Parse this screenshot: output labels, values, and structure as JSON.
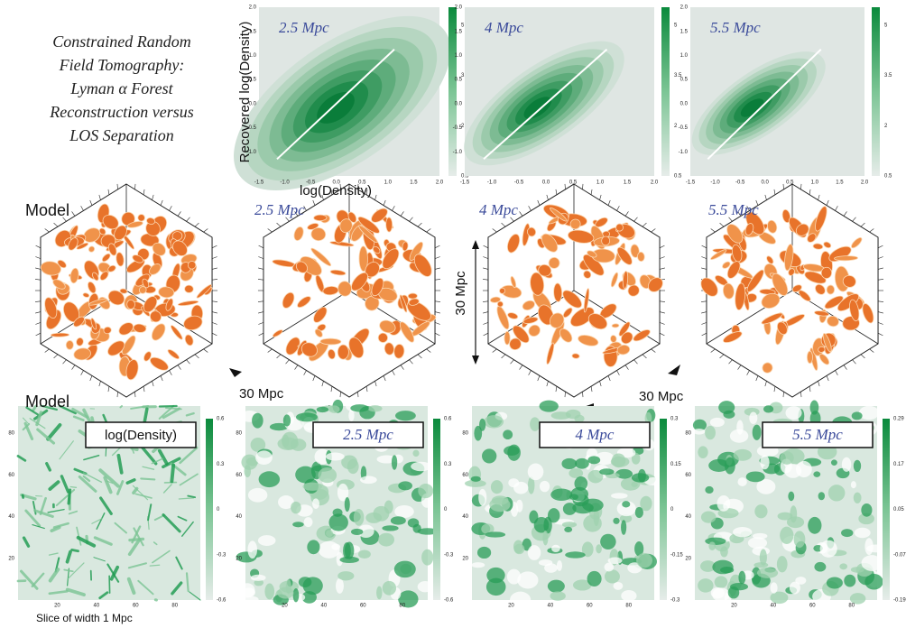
{
  "title": [
    "Constrained Random",
    "Field Tomography:",
    "Lyman α Forest",
    "Reconstruction versus",
    "LOS Separation"
  ],
  "density_comparison": {
    "y_label": "Recovered log(Density)",
    "x_label": "log(Density)",
    "tick_labels": [
      "-1.5",
      "-1.0",
      "-0.5",
      "0.0",
      "0.5",
      "1.0",
      "1.5",
      "2.0"
    ],
    "panels": [
      {
        "label": "2.5 Mpc",
        "colorbar_ticks": [
          "5",
          "3.5",
          "2",
          "0.5"
        ]
      },
      {
        "label": "4 Mpc",
        "colorbar_ticks": [
          "5",
          "3.5",
          "2",
          "0.5"
        ]
      },
      {
        "label": "5.5 Mpc",
        "colorbar_ticks": [
          "5",
          "3.5",
          "2",
          "0.5"
        ]
      }
    ]
  },
  "volumes": {
    "panels": [
      {
        "label": "Model"
      },
      {
        "label": "2.5 Mpc"
      },
      {
        "label": "4 Mpc"
      },
      {
        "label": "5.5 Mpc"
      }
    ],
    "scale_labels": [
      "30 Mpc",
      "30 Mpc",
      "30 Mpc"
    ]
  },
  "slices": {
    "row_label": "Model",
    "caption": "Slice of width 1 Mpc",
    "axis_ticks": [
      "20",
      "40",
      "60",
      "80"
    ],
    "panels": [
      {
        "label": "log(Density)",
        "colorbar_ticks": [
          "0.6",
          "0.3",
          "0",
          "-0.3",
          "-0.6"
        ]
      },
      {
        "label": "2.5 Mpc",
        "colorbar_ticks": [
          "0.6",
          "0.3",
          "0",
          "-0.3",
          "-0.6"
        ]
      },
      {
        "label": "4 Mpc",
        "colorbar_ticks": [
          "0.3",
          "0.15",
          "0",
          "-0.15",
          "-0.3"
        ]
      },
      {
        "label": "5.5 Mpc",
        "colorbar_ticks": [
          "0.29",
          "0.17",
          "0.05",
          "-0.07",
          "-0.19"
        ]
      }
    ]
  }
}
